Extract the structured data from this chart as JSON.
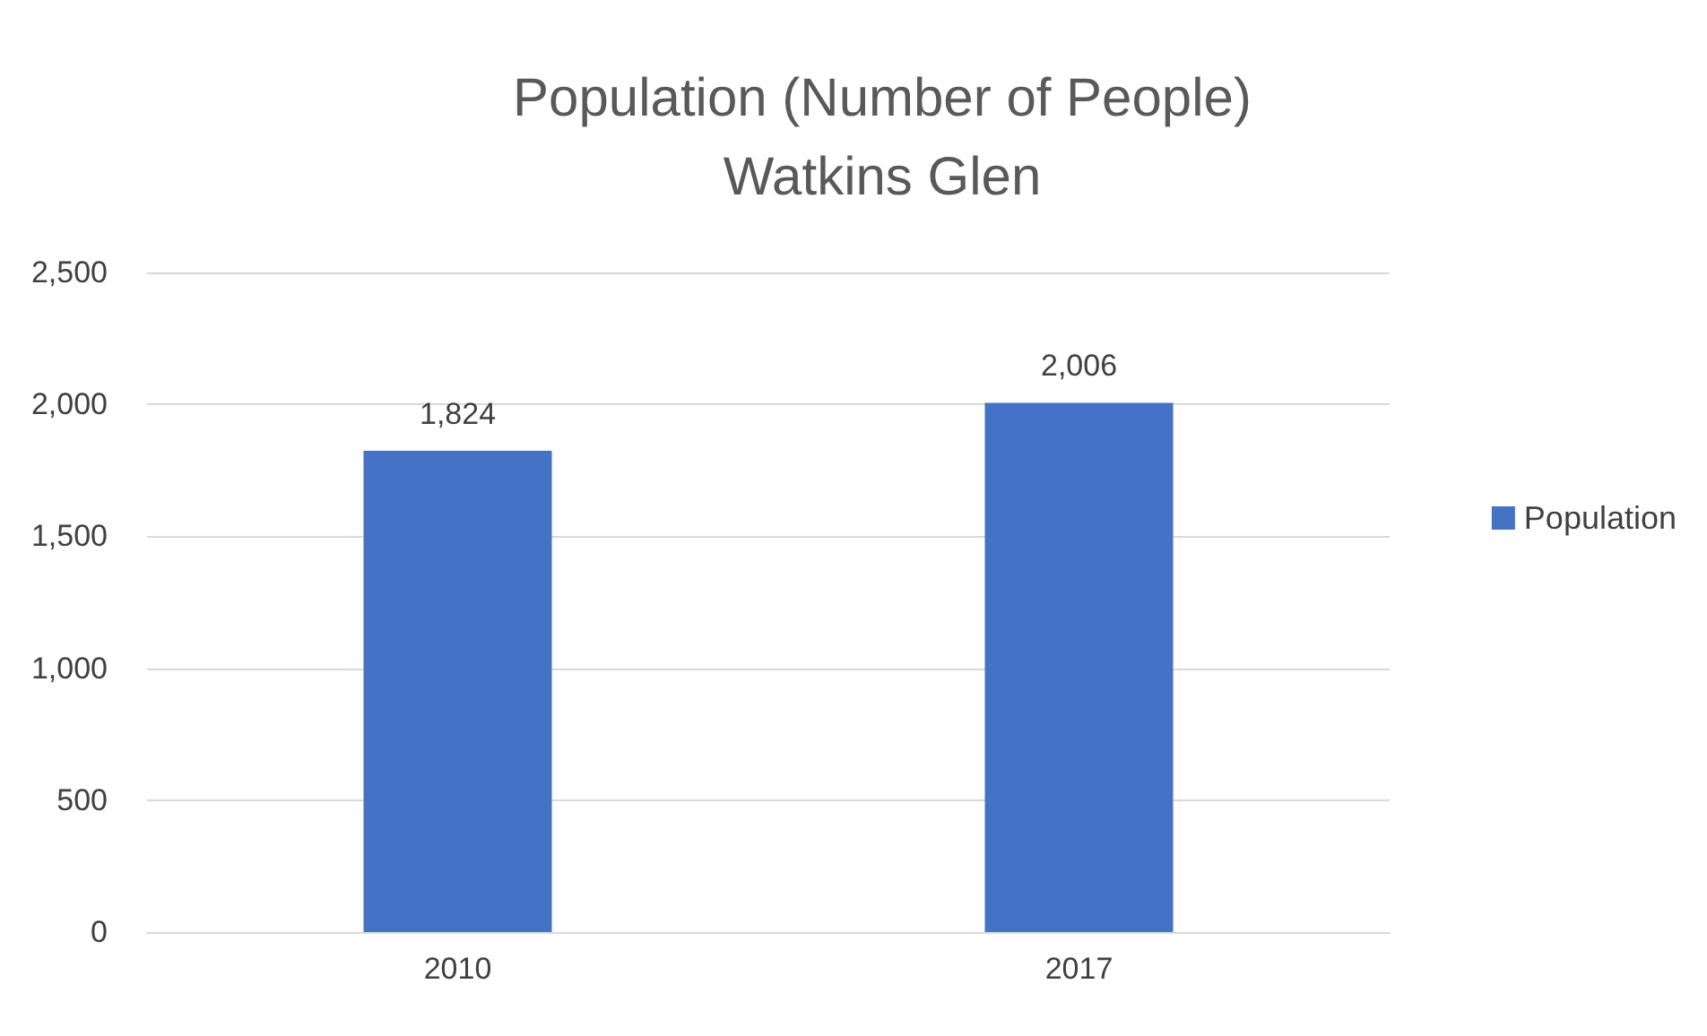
{
  "chart_data": {
    "type": "bar",
    "title": "Population (Number of People)\nWatkins Glen",
    "categories": [
      "2010",
      "2017"
    ],
    "series": [
      {
        "name": "Population",
        "color": "#4472c4",
        "values": [
          1824,
          2006
        ],
        "value_labels": [
          "1,824",
          "2,006"
        ]
      }
    ],
    "ylim": [
      0,
      2500
    ],
    "yticks": [
      {
        "value": 0,
        "label": "0"
      },
      {
        "value": 500,
        "label": "500"
      },
      {
        "value": 1000,
        "label": "1,000"
      },
      {
        "value": 1500,
        "label": "1,500"
      },
      {
        "value": 2000,
        "label": "2,000"
      },
      {
        "value": 2500,
        "label": "2,500"
      }
    ],
    "grid": "y",
    "legend": "right"
  }
}
